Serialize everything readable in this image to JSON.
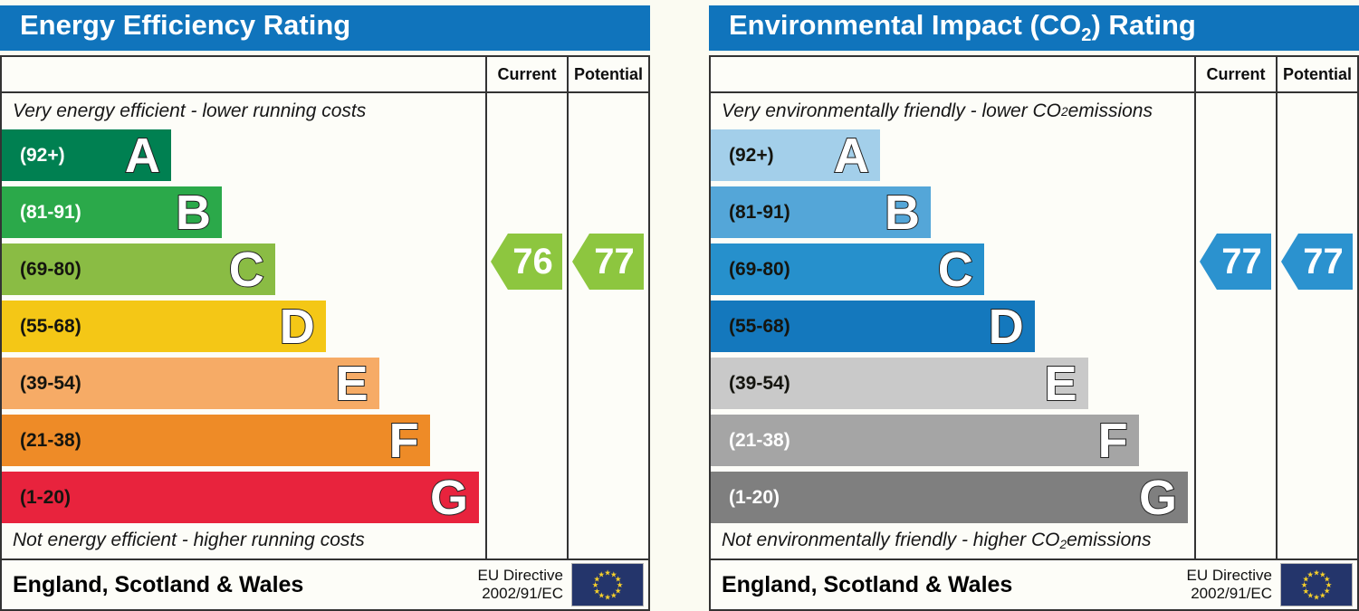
{
  "eu_flag": {
    "background": "#24356b",
    "star_color": "#f8d12a"
  },
  "charts": [
    {
      "title": {
        "pre": "Energy Efficiency Rating",
        "sub": "",
        "post": ""
      },
      "header_color": "#1074bc",
      "columns": {
        "current": "Current",
        "potential": "Potential"
      },
      "top_caption": {
        "pre": "Very energy efficient - lower running costs",
        "sub": "",
        "post": ""
      },
      "bottom_caption": {
        "pre": "Not energy efficient - higher running costs",
        "sub": "",
        "post": ""
      },
      "bands": [
        {
          "letter": "A",
          "range": "(92+)",
          "color": "#008051",
          "width_pct": 35,
          "label_light": true
        },
        {
          "letter": "B",
          "range": "(81-91)",
          "color": "#2ba94a",
          "width_pct": 45.5,
          "label_light": true
        },
        {
          "letter": "C",
          "range": "(69-80)",
          "color": "#8abc44",
          "width_pct": 56.5,
          "label_light": false
        },
        {
          "letter": "D",
          "range": "(55-68)",
          "color": "#f4c716",
          "width_pct": 67,
          "label_light": false
        },
        {
          "letter": "E",
          "range": "(39-54)",
          "color": "#f6ab66",
          "width_pct": 78,
          "label_light": false
        },
        {
          "letter": "F",
          "range": "(21-38)",
          "color": "#ee8b27",
          "width_pct": 88.5,
          "label_light": false
        },
        {
          "letter": "G",
          "range": "(1-20)",
          "color": "#e8233d",
          "width_pct": 98.7,
          "label_light": false
        }
      ],
      "current": {
        "value": "76",
        "color": "#8dc63f"
      },
      "potential": {
        "value": "77",
        "color": "#8dc63f"
      },
      "footer": {
        "region": "England, Scotland & Wales",
        "directive_line1": "EU Directive",
        "directive_line2": "2002/91/EC"
      }
    },
    {
      "title": {
        "pre": "Environmental Impact (CO",
        "sub": "2",
        "post": ") Rating"
      },
      "header_color": "#1074bc",
      "columns": {
        "current": "Current",
        "potential": "Potential"
      },
      "top_caption": {
        "pre": "Very environmentally friendly - lower CO",
        "sub": "2",
        "post": " emissions"
      },
      "bottom_caption": {
        "pre": "Not environmentally friendly - higher CO",
        "sub": "2",
        "post": " emissions"
      },
      "bands": [
        {
          "letter": "A",
          "range": "(92+)",
          "color": "#a3cfea",
          "width_pct": 35,
          "label_light": false
        },
        {
          "letter": "B",
          "range": "(81-91)",
          "color": "#54a6d8",
          "width_pct": 45.5,
          "label_light": false
        },
        {
          "letter": "C",
          "range": "(69-80)",
          "color": "#2690cc",
          "width_pct": 56.5,
          "label_light": false
        },
        {
          "letter": "D",
          "range": "(55-68)",
          "color": "#1478bd",
          "width_pct": 67,
          "label_light": false
        },
        {
          "letter": "E",
          "range": "(39-54)",
          "color": "#c9c9c9",
          "width_pct": 78,
          "label_light": false
        },
        {
          "letter": "F",
          "range": "(21-38)",
          "color": "#a5a5a5",
          "width_pct": 88.5,
          "label_light": true
        },
        {
          "letter": "G",
          "range": "(1-20)",
          "color": "#7f7f7f",
          "width_pct": 98.7,
          "label_light": true
        }
      ],
      "current": {
        "value": "77",
        "color": "#2b92cf"
      },
      "potential": {
        "value": "77",
        "color": "#2b92cf"
      },
      "footer": {
        "region": "England, Scotland & Wales",
        "directive_line1": "EU Directive",
        "directive_line2": "2002/91/EC"
      }
    }
  ],
  "chart_data": [
    {
      "type": "bar",
      "title": "Energy Efficiency Rating",
      "bands": [
        {
          "grade": "A",
          "range": "92+"
        },
        {
          "grade": "B",
          "range": "81-91"
        },
        {
          "grade": "C",
          "range": "69-80"
        },
        {
          "grade": "D",
          "range": "55-68"
        },
        {
          "grade": "E",
          "range": "39-54"
        },
        {
          "grade": "F",
          "range": "21-38"
        },
        {
          "grade": "G",
          "range": "1-20"
        }
      ],
      "current": 76,
      "potential": 77,
      "current_grade": "C",
      "potential_grade": "C",
      "top_note": "Very energy efficient - lower running costs",
      "bottom_note": "Not energy efficient - higher running costs",
      "region": "England, Scotland & Wales",
      "directive": "EU Directive 2002/91/EC"
    },
    {
      "type": "bar",
      "title": "Environmental Impact (CO2) Rating",
      "bands": [
        {
          "grade": "A",
          "range": "92+"
        },
        {
          "grade": "B",
          "range": "81-91"
        },
        {
          "grade": "C",
          "range": "69-80"
        },
        {
          "grade": "D",
          "range": "55-68"
        },
        {
          "grade": "E",
          "range": "39-54"
        },
        {
          "grade": "F",
          "range": "21-38"
        },
        {
          "grade": "G",
          "range": "1-20"
        }
      ],
      "current": 77,
      "potential": 77,
      "current_grade": "C",
      "potential_grade": "C",
      "top_note": "Very environmentally friendly - lower CO2 emissions",
      "bottom_note": "Not environmentally friendly - higher CO2 emissions",
      "region": "England, Scotland & Wales",
      "directive": "EU Directive 2002/91/EC"
    }
  ]
}
